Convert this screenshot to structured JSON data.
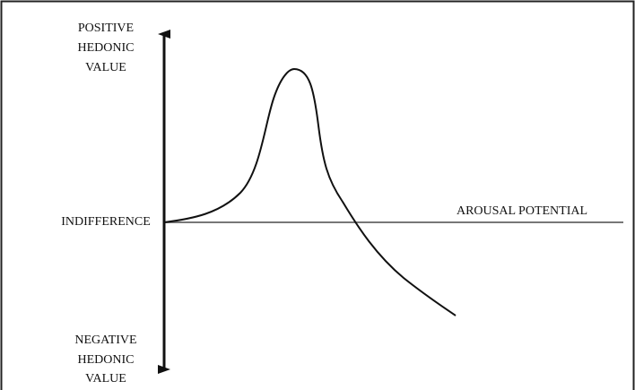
{
  "axes": {
    "positive_label": [
      "POSITIVE",
      "HEDONIC",
      "VALUE"
    ],
    "negative_label": [
      "NEGATIVE",
      "HEDONIC",
      "VALUE"
    ],
    "origin_label": "INDIFFERENCE",
    "x_label": "AROUSAL POTENTIAL"
  }
}
